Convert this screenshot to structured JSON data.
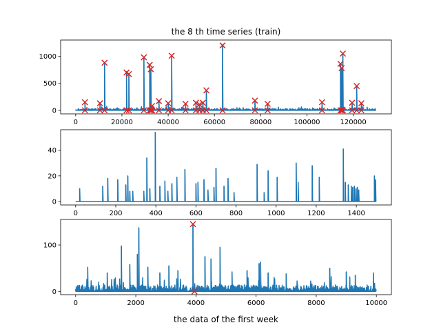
{
  "figure": {
    "series_color": "#1f77b4",
    "marker_color": "#d62728"
  },
  "chart_data": [
    {
      "type": "line",
      "title": "the 8 th time series (train)",
      "xlabel": "",
      "ylabel": "",
      "xlim": [
        -6500,
        136500
      ],
      "ylim": [
        -65,
        1300
      ],
      "xticks": [
        0,
        20000,
        40000,
        60000,
        80000,
        100000,
        120000
      ],
      "xtick_labels": [
        "0",
        "20000",
        "40000",
        "60000",
        "80000",
        "100000",
        "120000"
      ],
      "yticks": [
        0,
        500,
        1000
      ],
      "ytick_labels": [
        "0",
        "500",
        "1000"
      ],
      "grid": false,
      "baseline_noise": 45,
      "x_end": 130000,
      "spikes": [
        {
          "x": 4000,
          "y": 150
        },
        {
          "x": 10500,
          "y": 130
        },
        {
          "x": 12500,
          "y": 880
        },
        {
          "x": 22000,
          "y": 700
        },
        {
          "x": 23000,
          "y": 670
        },
        {
          "x": 29500,
          "y": 980
        },
        {
          "x": 32000,
          "y": 840
        },
        {
          "x": 32500,
          "y": 760
        },
        {
          "x": 33000,
          "y": 80
        },
        {
          "x": 36000,
          "y": 170
        },
        {
          "x": 40000,
          "y": 130
        },
        {
          "x": 41500,
          "y": 1010
        },
        {
          "x": 47500,
          "y": 120
        },
        {
          "x": 52000,
          "y": 140
        },
        {
          "x": 53500,
          "y": 110
        },
        {
          "x": 55000,
          "y": 140
        },
        {
          "x": 56500,
          "y": 370
        },
        {
          "x": 63500,
          "y": 1200
        },
        {
          "x": 77500,
          "y": 180
        },
        {
          "x": 83000,
          "y": 120
        },
        {
          "x": 106500,
          "y": 150
        },
        {
          "x": 114500,
          "y": 860
        },
        {
          "x": 115000,
          "y": 780
        },
        {
          "x": 115500,
          "y": 1050
        },
        {
          "x": 119500,
          "y": 140
        },
        {
          "x": 121500,
          "y": 450
        },
        {
          "x": 123500,
          "y": 130
        }
      ],
      "markers": [
        {
          "x": 4000,
          "y": 150
        },
        {
          "x": 4000,
          "y": 0
        },
        {
          "x": 10500,
          "y": 130
        },
        {
          "x": 10500,
          "y": 0
        },
        {
          "x": 12500,
          "y": 880
        },
        {
          "x": 12500,
          "y": 0
        },
        {
          "x": 22000,
          "y": 700
        },
        {
          "x": 22000,
          "y": 0
        },
        {
          "x": 23000,
          "y": 670
        },
        {
          "x": 23000,
          "y": 0
        },
        {
          "x": 29500,
          "y": 980
        },
        {
          "x": 29500,
          "y": 0
        },
        {
          "x": 32000,
          "y": 840
        },
        {
          "x": 32000,
          "y": 0
        },
        {
          "x": 32500,
          "y": 760
        },
        {
          "x": 32500,
          "y": 0
        },
        {
          "x": 33000,
          "y": 80
        },
        {
          "x": 33000,
          "y": 0
        },
        {
          "x": 36000,
          "y": 170
        },
        {
          "x": 36000,
          "y": 0
        },
        {
          "x": 40000,
          "y": 130
        },
        {
          "x": 40000,
          "y": 0
        },
        {
          "x": 41500,
          "y": 1010
        },
        {
          "x": 41500,
          "y": 0
        },
        {
          "x": 47500,
          "y": 120
        },
        {
          "x": 47500,
          "y": 0
        },
        {
          "x": 52000,
          "y": 140
        },
        {
          "x": 52000,
          "y": 0
        },
        {
          "x": 53500,
          "y": 110
        },
        {
          "x": 53500,
          "y": 0
        },
        {
          "x": 55000,
          "y": 140
        },
        {
          "x": 55000,
          "y": 0
        },
        {
          "x": 56500,
          "y": 370
        },
        {
          "x": 56500,
          "y": 0
        },
        {
          "x": 63500,
          "y": 1200
        },
        {
          "x": 63500,
          "y": 0
        },
        {
          "x": 77500,
          "y": 180
        },
        {
          "x": 77500,
          "y": 0
        },
        {
          "x": 83000,
          "y": 120
        },
        {
          "x": 83000,
          "y": 0
        },
        {
          "x": 106500,
          "y": 150
        },
        {
          "x": 106500,
          "y": 0
        },
        {
          "x": 114500,
          "y": 860
        },
        {
          "x": 114500,
          "y": 0
        },
        {
          "x": 115000,
          "y": 780
        },
        {
          "x": 115000,
          "y": 0
        },
        {
          "x": 115500,
          "y": 1050
        },
        {
          "x": 115500,
          "y": 0
        },
        {
          "x": 119500,
          "y": 140
        },
        {
          "x": 119500,
          "y": 0
        },
        {
          "x": 121500,
          "y": 450
        },
        {
          "x": 121500,
          "y": 0
        },
        {
          "x": 123500,
          "y": 130
        },
        {
          "x": 123500,
          "y": 0
        }
      ]
    },
    {
      "type": "line",
      "title": "",
      "xlabel": "",
      "ylabel": "",
      "xlim": [
        -75,
        1575
      ],
      "ylim": [
        -2.7,
        56
      ],
      "xticks": [
        0,
        200,
        400,
        600,
        800,
        1000,
        1200,
        1400
      ],
      "xtick_labels": [
        "0",
        "200",
        "400",
        "600",
        "800",
        "1000",
        "1200",
        "1400"
      ],
      "yticks": [
        0,
        20,
        40
      ],
      "ytick_labels": [
        "0",
        "20",
        "40"
      ],
      "grid": false,
      "x_end": 1500,
      "spikes": [
        {
          "x": 20,
          "y": 10
        },
        {
          "x": 135,
          "y": 12
        },
        {
          "x": 160,
          "y": 18
        },
        {
          "x": 210,
          "y": 17
        },
        {
          "x": 250,
          "y": 13
        },
        {
          "x": 260,
          "y": 20
        },
        {
          "x": 270,
          "y": 8
        },
        {
          "x": 285,
          "y": 8
        },
        {
          "x": 340,
          "y": 8
        },
        {
          "x": 355,
          "y": 34
        },
        {
          "x": 370,
          "y": 10
        },
        {
          "x": 397,
          "y": 54
        },
        {
          "x": 420,
          "y": 12
        },
        {
          "x": 445,
          "y": 16
        },
        {
          "x": 460,
          "y": 8
        },
        {
          "x": 480,
          "y": 14
        },
        {
          "x": 505,
          "y": 19
        },
        {
          "x": 545,
          "y": 25
        },
        {
          "x": 600,
          "y": 14
        },
        {
          "x": 610,
          "y": 15
        },
        {
          "x": 640,
          "y": 17
        },
        {
          "x": 660,
          "y": 9
        },
        {
          "x": 690,
          "y": 11
        },
        {
          "x": 700,
          "y": 26
        },
        {
          "x": 740,
          "y": 12
        },
        {
          "x": 760,
          "y": 18
        },
        {
          "x": 790,
          "y": 7
        },
        {
          "x": 905,
          "y": 29
        },
        {
          "x": 940,
          "y": 7
        },
        {
          "x": 960,
          "y": 24
        },
        {
          "x": 1005,
          "y": 19
        },
        {
          "x": 1100,
          "y": 30
        },
        {
          "x": 1110,
          "y": 15
        },
        {
          "x": 1180,
          "y": 28
        },
        {
          "x": 1215,
          "y": 19
        },
        {
          "x": 1335,
          "y": 41
        },
        {
          "x": 1345,
          "y": 15
        },
        {
          "x": 1360,
          "y": 13
        },
        {
          "x": 1375,
          "y": 12
        },
        {
          "x": 1382,
          "y": 11
        },
        {
          "x": 1390,
          "y": 12
        },
        {
          "x": 1398,
          "y": 10
        },
        {
          "x": 1405,
          "y": 11
        },
        {
          "x": 1412,
          "y": 9
        },
        {
          "x": 1490,
          "y": 20
        },
        {
          "x": 1496,
          "y": 17
        }
      ],
      "markers": []
    },
    {
      "type": "line",
      "title": "",
      "xlabel": "the data of the first week",
      "ylabel": "",
      "xlim": [
        -500,
        10500
      ],
      "ylim": [
        -7,
        155
      ],
      "xticks": [
        0,
        2000,
        4000,
        6000,
        8000,
        10000
      ],
      "xtick_labels": [
        "0",
        "2000",
        "4000",
        "6000",
        "8000",
        "10000"
      ],
      "yticks": [
        0,
        100
      ],
      "ytick_labels": [
        "0",
        "100"
      ],
      "grid": false,
      "baseline_noise": 20,
      "x_end": 10000,
      "spikes": [
        {
          "x": 400,
          "y": 52
        },
        {
          "x": 1050,
          "y": 40
        },
        {
          "x": 1520,
          "y": 98
        },
        {
          "x": 1800,
          "y": 58
        },
        {
          "x": 2050,
          "y": 80
        },
        {
          "x": 2100,
          "y": 137
        },
        {
          "x": 2400,
          "y": 52
        },
        {
          "x": 2800,
          "y": 40
        },
        {
          "x": 3100,
          "y": 55
        },
        {
          "x": 3400,
          "y": 45
        },
        {
          "x": 3900,
          "y": 145
        },
        {
          "x": 4300,
          "y": 75
        },
        {
          "x": 4500,
          "y": 70
        },
        {
          "x": 4800,
          "y": 95
        },
        {
          "x": 5200,
          "y": 42
        },
        {
          "x": 5700,
          "y": 45
        },
        {
          "x": 6100,
          "y": 60
        },
        {
          "x": 6150,
          "y": 63
        },
        {
          "x": 6400,
          "y": 40
        },
        {
          "x": 7000,
          "y": 38
        },
        {
          "x": 8450,
          "y": 50
        },
        {
          "x": 9000,
          "y": 42
        },
        {
          "x": 9300,
          "y": 35
        },
        {
          "x": 9900,
          "y": 40
        }
      ],
      "markers": [
        {
          "x": 3900,
          "y": 145
        },
        {
          "x": 3950,
          "y": 0
        }
      ]
    }
  ]
}
